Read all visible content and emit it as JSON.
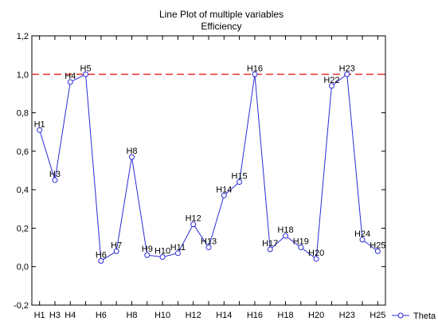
{
  "chart_data": {
    "type": "line",
    "title": "Line Plot of multiple variables",
    "subtitle": "Efficiency",
    "xlabel": "",
    "ylabel": "",
    "ylim": [
      -0.2,
      1.2
    ],
    "yticks": [
      -0.2,
      0.0,
      0.2,
      0.4,
      0.6,
      0.8,
      1.0,
      1.2
    ],
    "ytick_labels": [
      "-0,2",
      "0,0",
      "0,2",
      "0,4",
      "0,6",
      "0,8",
      "1,0",
      "1,2"
    ],
    "xtick_labels": [
      "H1",
      "H3",
      "H4",
      "H6",
      "H8",
      "H10",
      "H12",
      "H14",
      "H16",
      "H18",
      "H20",
      "H23",
      "H25"
    ],
    "grid": false,
    "legend_position": "bottom-right",
    "reference_line": {
      "y": 1.0,
      "color": "#e8413c",
      "style": "dashed"
    },
    "categories": [
      "H1",
      "H3",
      "H4",
      "H5",
      "H6",
      "H7",
      "H8",
      "H9",
      "H10",
      "H11",
      "H12",
      "H13",
      "H14",
      "H15",
      "H16",
      "H17",
      "H18",
      "H19",
      "H20",
      "H22",
      "H23",
      "H24",
      "H25"
    ],
    "series": [
      {
        "name": "Theta",
        "color": "#2b2bd6",
        "values": [
          0.71,
          0.45,
          0.96,
          1.0,
          0.03,
          0.08,
          0.57,
          0.06,
          0.05,
          0.07,
          0.22,
          0.1,
          0.37,
          0.44,
          1.0,
          0.09,
          0.16,
          0.1,
          0.04,
          0.94,
          1.0,
          0.14,
          0.08
        ]
      }
    ]
  }
}
